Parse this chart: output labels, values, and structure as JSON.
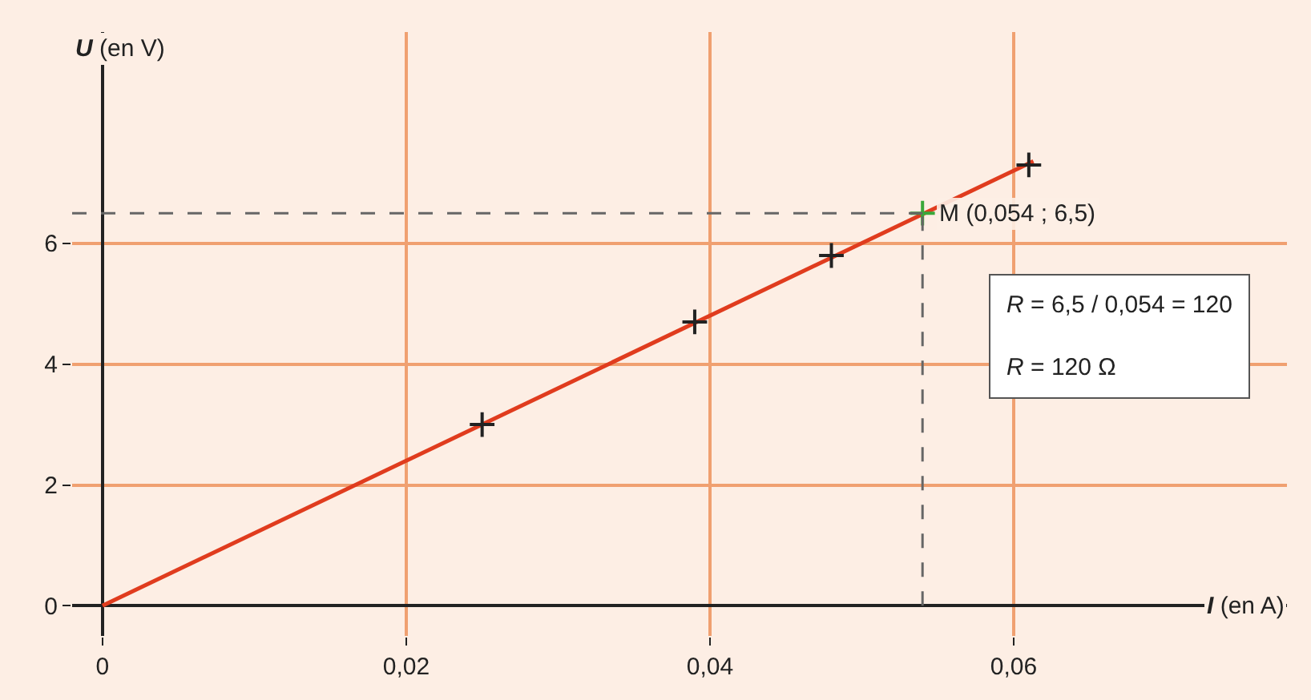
{
  "chart_data": {
    "type": "scatter",
    "xlabel": "I (en A)",
    "ylabel": "U (en V)",
    "series": [
      {
        "type": "line",
        "color": "#e03c1e",
        "x": [
          0,
          0.0613
        ],
        "values": [
          0,
          7.36
        ],
        "marker": "none",
        "line_style": "solid"
      },
      {
        "color": "#222222",
        "x": [
          0.025,
          0.039,
          0.048,
          0.061
        ],
        "values": [
          3.0,
          4.7,
          5.8,
          7.3
        ],
        "marker": "cross"
      },
      {
        "color": "#3aa83a",
        "x": [
          0.054
        ],
        "values": [
          6.5
        ],
        "marker": "cross"
      }
    ],
    "annotations": [
      {
        "text": "M (0,054 ; 6,5)",
        "x": 0.054,
        "y": 6.5
      },
      "R = 6,5 / 0,054 = 120",
      "R = 120 Ω"
    ],
    "xlim": [
      -0.002,
      0.078
    ],
    "ylim": [
      -0.5,
      9.5
    ],
    "xticks": [
      0,
      {
        "value": 0.02,
        "label": "0,02"
      },
      {
        "value": 0.04,
        "label": "0,04"
      },
      {
        "value": 0.06,
        "label": "0,06"
      }
    ],
    "yticks": [
      0,
      2,
      4,
      6
    ],
    "grid": true
  }
}
